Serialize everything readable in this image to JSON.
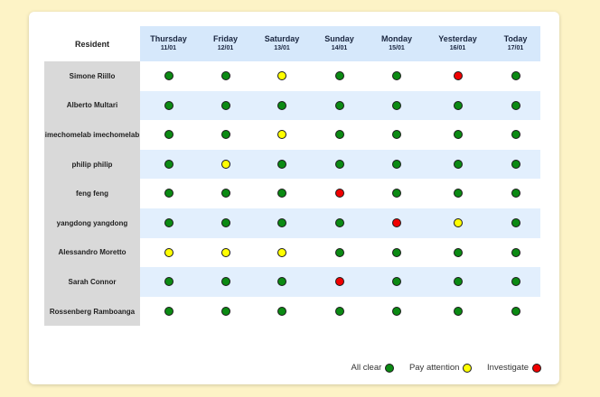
{
  "header": {
    "resident_label": "Resident"
  },
  "days": [
    {
      "name": "Thursday",
      "date": "11/01"
    },
    {
      "name": "Friday",
      "date": "12/01"
    },
    {
      "name": "Saturday",
      "date": "13/01"
    },
    {
      "name": "Sunday",
      "date": "14/01"
    },
    {
      "name": "Monday",
      "date": "15/01"
    },
    {
      "name": "Yesterday",
      "date": "16/01"
    },
    {
      "name": "Today",
      "date": "17/01"
    }
  ],
  "residents": [
    {
      "name": "Simone Riillo",
      "statuses": [
        "green",
        "green",
        "yellow",
        "green",
        "green",
        "red",
        "green"
      ]
    },
    {
      "name": "Alberto Multari",
      "statuses": [
        "green",
        "green",
        "green",
        "green",
        "green",
        "green",
        "green"
      ]
    },
    {
      "name": "imechomelab imechomelab",
      "statuses": [
        "green",
        "green",
        "yellow",
        "green",
        "green",
        "green",
        "green"
      ]
    },
    {
      "name": "philip philip",
      "statuses": [
        "green",
        "yellow",
        "green",
        "green",
        "green",
        "green",
        "green"
      ]
    },
    {
      "name": "feng feng",
      "statuses": [
        "green",
        "green",
        "green",
        "red",
        "green",
        "green",
        "green"
      ]
    },
    {
      "name": "yangdong yangdong",
      "statuses": [
        "green",
        "green",
        "green",
        "green",
        "red",
        "yellow",
        "green"
      ]
    },
    {
      "name": "Alessandro Moretto",
      "statuses": [
        "yellow",
        "yellow",
        "yellow",
        "green",
        "green",
        "green",
        "green"
      ]
    },
    {
      "name": "Sarah Connor",
      "statuses": [
        "green",
        "green",
        "green",
        "red",
        "green",
        "green",
        "green"
      ]
    },
    {
      "name": "Rossenberg Ramboanga",
      "statuses": [
        "green",
        "green",
        "green",
        "green",
        "green",
        "green",
        "green"
      ]
    }
  ],
  "status_colors": {
    "green": "#0b8a13",
    "yellow": "#ffff00",
    "red": "#f00000"
  },
  "legend": {
    "all_clear": "All clear",
    "pay_attention": "Pay attention",
    "investigate": "Investigate"
  }
}
